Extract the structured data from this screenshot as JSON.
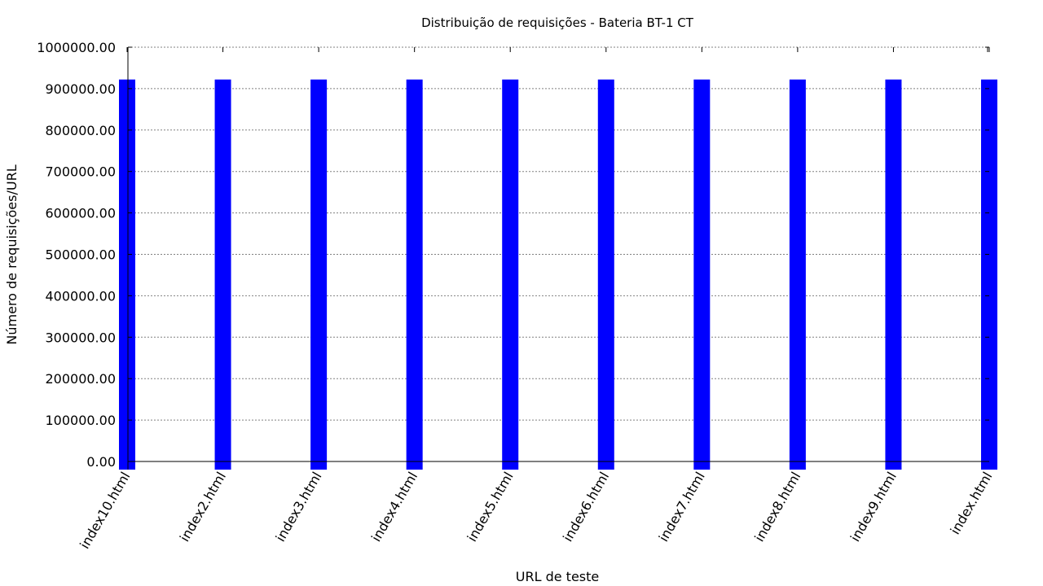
{
  "chart_data": {
    "type": "bar",
    "title": "Distribuição de requisições - Bateria BT-1 CT",
    "xlabel": "URL de teste",
    "ylabel": "Número de requisições/URL",
    "categories": [
      "index10.html",
      "index2.html",
      "index3.html",
      "index4.html",
      "index5.html",
      "index6.html",
      "index7.html",
      "index8.html",
      "index9.html",
      "index.html"
    ],
    "values": [
      922000,
      922000,
      922000,
      922000,
      922000,
      922000,
      922000,
      922000,
      922000,
      922000
    ],
    "ylim": [
      0,
      1000000
    ],
    "yticks": [
      "0.00",
      "100000.00",
      "200000.00",
      "300000.00",
      "400000.00",
      "500000.00",
      "600000.00",
      "700000.00",
      "800000.00",
      "900000.00",
      "1000000.00"
    ],
    "grid": true,
    "bar_color": "#0000ff",
    "grid_color": "#808080",
    "axis_color": "#000000"
  }
}
